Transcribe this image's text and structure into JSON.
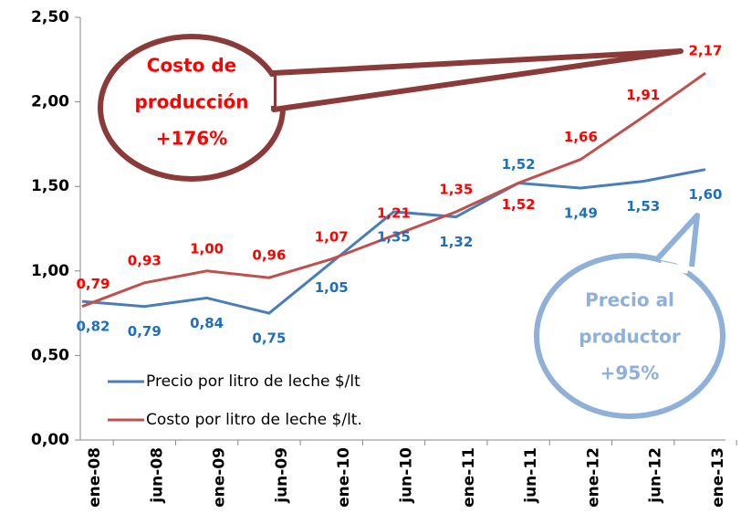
{
  "chart_data": {
    "type": "line",
    "categories": [
      "ene-08",
      "jun-08",
      "ene-09",
      "jun-09",
      "ene-10",
      "jun-10",
      "ene-11",
      "jun-11",
      "ene-12",
      "jun-12",
      "ene-13"
    ],
    "series": [
      {
        "name": "Precio por litro de leche $/lt",
        "color": "#4a7ebb",
        "values": [
          0.82,
          0.79,
          0.84,
          0.75,
          1.05,
          1.35,
          1.32,
          1.52,
          1.49,
          1.53,
          1.6
        ],
        "value_labels": [
          "0,82",
          "0,79",
          "0,84",
          "0,75",
          "1,05",
          "1,35",
          "1,32",
          "1,52",
          "1,49",
          "1,53",
          "1,60"
        ]
      },
      {
        "name": "Costo por litro de leche $/lt.",
        "color": "#c0504d",
        "values": [
          0.79,
          0.93,
          1.0,
          0.96,
          1.07,
          1.21,
          1.35,
          1.52,
          1.66,
          1.91,
          2.17
        ],
        "value_labels": [
          "0,79",
          "0,93",
          "1,00",
          "0,96",
          "1,07",
          "1,21",
          "1,35",
          "1,52",
          "1,66",
          "1,91",
          "2,17"
        ]
      }
    ],
    "ylim": [
      0,
      2.5
    ],
    "yticks": [
      {
        "value": 0,
        "label": "0,00"
      },
      {
        "value": 0.5,
        "label": "0,50"
      },
      {
        "value": 1,
        "label": "1,00"
      },
      {
        "value": 1.5,
        "label": "1,50"
      },
      {
        "value": 2,
        "label": "2,00"
      },
      {
        "value": 2.5,
        "label": "2,50"
      }
    ],
    "grid": false,
    "legend": "lower left",
    "annotations": [
      [
        "Costo de",
        "producción",
        "+176%"
      ],
      [
        "Precio al",
        "productor",
        "+95%"
      ]
    ]
  }
}
